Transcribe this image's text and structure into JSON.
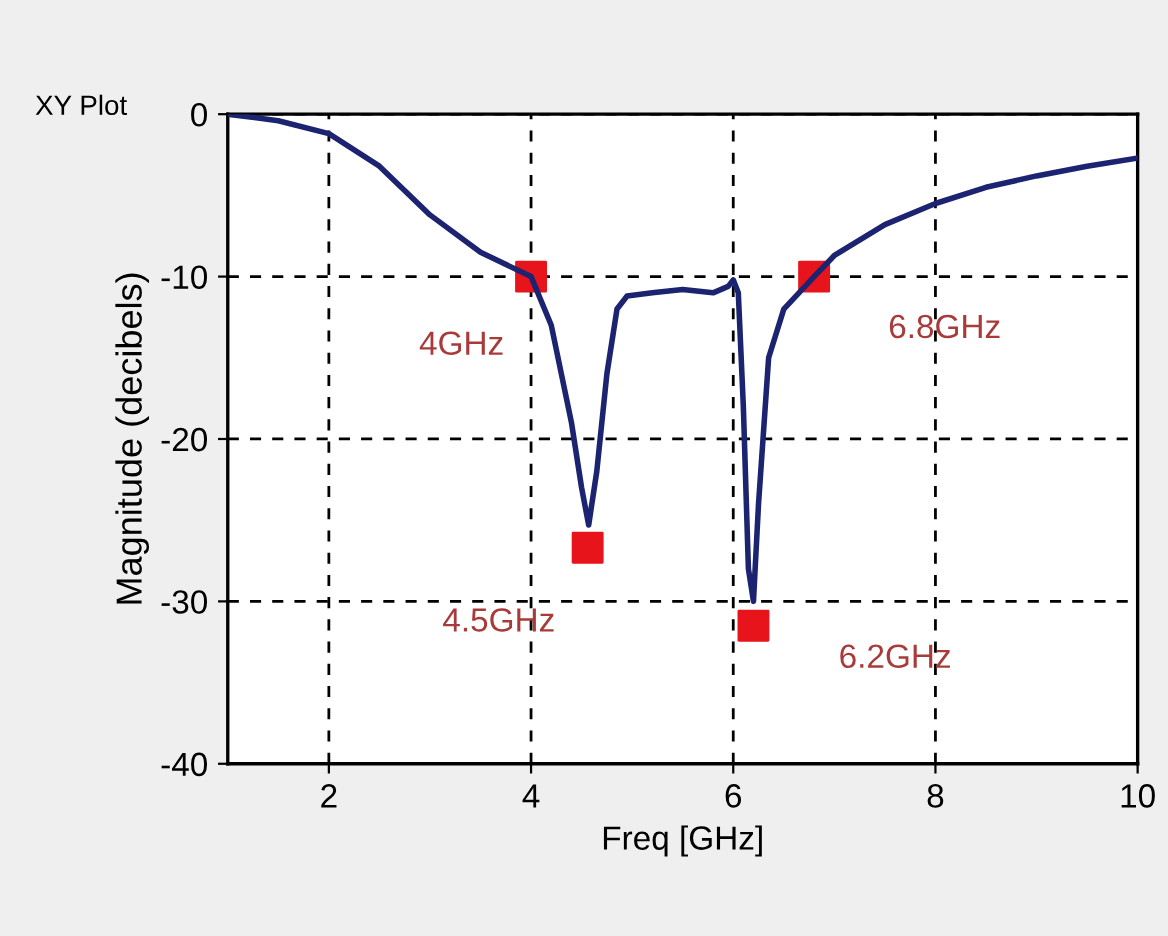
{
  "chart_data": {
    "type": "line",
    "xlabel": "Freq [GHz]",
    "ylabel": "Magnitude (decibels)",
    "xlim": [
      1,
      10
    ],
    "ylim": [
      -40,
      0
    ],
    "xticks": [
      2,
      4,
      6,
      8,
      10
    ],
    "yticks": [
      0,
      -10,
      -20,
      -30,
      -40
    ],
    "grid": true,
    "line_style": "solid",
    "marker": "none",
    "series": [
      {
        "color": "#1c2370",
        "x": [
          1,
          1.5,
          2,
          2.5,
          3,
          3.5,
          4,
          4.2,
          4.4,
          4.5,
          4.57,
          4.65,
          4.75,
          4.85,
          4.95,
          5.2,
          5.5,
          5.8,
          5.95,
          6.0,
          6.05,
          6.1,
          6.15,
          6.2,
          6.25,
          6.35,
          6.5,
          6.8,
          7,
          7.5,
          8,
          8.5,
          9,
          9.5,
          10
        ],
        "values": [
          0,
          -0.4,
          -1.2,
          -3.2,
          -6.2,
          -8.5,
          -10,
          -13,
          -19,
          -23,
          -25.3,
          -22,
          -16,
          -12,
          -11.2,
          -11,
          -10.8,
          -11,
          -10.6,
          -10.2,
          -11,
          -18,
          -28,
          -30,
          -24,
          -15,
          -12,
          -10,
          -8.7,
          -6.8,
          -5.5,
          -4.5,
          -3.8,
          -3.2,
          -2.7
        ]
      },
      {
        "type": "scatter",
        "marker": "square",
        "color": "#e8141c",
        "x": [
          4,
          4.56,
          6.2,
          6.8
        ],
        "values": [
          -10,
          -26.7,
          -31.5,
          -10
        ]
      }
    ],
    "annotations": [
      "XY Plot",
      {
        "text": "4GHz",
        "x": 4,
        "y": -10
      },
      {
        "text": "4.5GHz",
        "x": 4.56,
        "y": -26.7
      },
      {
        "text": "6.2GHz",
        "x": 6.2,
        "y": -31.5
      },
      {
        "text": "6.8GHz",
        "x": 6.8,
        "y": -10
      }
    ]
  }
}
